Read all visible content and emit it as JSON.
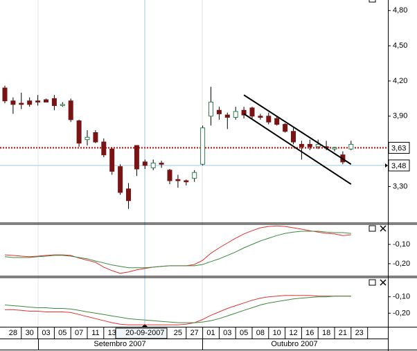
{
  "chart_data": [
    {
      "type": "candlestick",
      "categories": [
        null,
        "28",
        null,
        "30",
        null,
        "03",
        null,
        "05",
        null,
        "07",
        null,
        "11",
        null,
        "13",
        null,
        null,
        null,
        "20-09-2007",
        null,
        null,
        null,
        "25",
        null,
        "27",
        null,
        "01",
        null,
        "03",
        null,
        "05",
        null,
        "08",
        null,
        "10",
        null,
        "12",
        null,
        "16",
        null,
        "18",
        null,
        "21",
        null,
        "23"
      ],
      "months": [
        "Setembro 2007",
        "Outubro 2007"
      ],
      "open": [
        4.14,
        4.03,
        4.01,
        4.03,
        4.03,
        4.04,
        4.05,
        3.99,
        4.03,
        3.86,
        3.7,
        3.76,
        3.68,
        3.62,
        3.47,
        3.28,
        3.65,
        3.51,
        3.46,
        3.5,
        3.44,
        3.36,
        3.35,
        3.37,
        3.49,
        3.9,
        3.95,
        3.91,
        3.89,
        3.95,
        3.97,
        3.9,
        3.9,
        3.88,
        3.83,
        3.77,
        3.66,
        3.66,
        3.64,
        3.64,
        3.62,
        3.57,
        3.62,
        null
      ],
      "high": [
        4.16,
        4.06,
        4.1,
        4.06,
        4.08,
        4.05,
        4.08,
        4.02,
        4.05,
        3.87,
        3.78,
        3.78,
        3.71,
        3.63,
        3.49,
        3.33,
        3.65,
        3.53,
        3.53,
        3.52,
        3.45,
        3.4,
        3.36,
        3.44,
        3.82,
        4.15,
        3.98,
        3.93,
        3.98,
        3.98,
        3.98,
        3.92,
        3.93,
        3.9,
        3.84,
        3.8,
        3.69,
        3.7,
        3.7,
        3.69,
        3.64,
        3.6,
        3.69,
        null
      ],
      "low": [
        4.01,
        3.92,
        3.96,
        3.98,
        3.99,
        4.02,
        3.95,
        3.98,
        3.85,
        3.64,
        3.65,
        3.67,
        3.55,
        3.4,
        3.23,
        3.11,
        3.39,
        3.45,
        3.44,
        3.46,
        3.32,
        3.29,
        3.31,
        3.34,
        3.48,
        3.82,
        3.87,
        3.79,
        3.87,
        3.88,
        3.88,
        3.87,
        3.83,
        3.82,
        3.76,
        3.66,
        3.53,
        3.61,
        3.62,
        3.61,
        3.6,
        3.49,
        3.61,
        null
      ],
      "close": [
        4.03,
        4.0,
        4.0,
        4.0,
        4.02,
        4.02,
        3.99,
        4.0,
        3.87,
        3.67,
        3.72,
        3.68,
        3.57,
        3.43,
        3.25,
        3.18,
        3.45,
        3.48,
        3.5,
        3.49,
        3.35,
        3.35,
        3.34,
        3.42,
        3.8,
        4.02,
        3.92,
        3.89,
        3.94,
        3.91,
        3.9,
        3.89,
        3.85,
        3.83,
        3.77,
        3.68,
        3.64,
        3.64,
        3.66,
        3.63,
        3.63,
        3.51,
        3.66,
        null
      ],
      "up_color": "#2e7d4f",
      "down_color": "#7a1414",
      "ylim": [
        2.99,
        4.89
      ],
      "yticks": [
        {
          "value": 4.8,
          "label": "4,80"
        },
        {
          "value": 4.5,
          "label": "4,50"
        },
        {
          "value": 4.2,
          "label": "4,20"
        },
        {
          "value": 3.9,
          "label": "3,90"
        },
        {
          "value": 3.3,
          "label": "3,30"
        }
      ],
      "price_lines": [
        {
          "value": 3.63,
          "label": "3,63",
          "color": "#cc0000",
          "dotted": true
        },
        {
          "value": 3.48,
          "label": "3,48",
          "color": "#9cc9dc",
          "dotted": false
        }
      ],
      "trend_lines": [
        {
          "x": [
            29,
            42
          ],
          "y": [
            4.08,
            3.49
          ]
        },
        {
          "x": [
            29,
            42
          ],
          "y": [
            3.92,
            3.32
          ]
        }
      ]
    },
    {
      "type": "line",
      "ylim": [
        -0.265,
        0.004
      ],
      "yticks": [
        {
          "value": -0.1,
          "label": "-0,10"
        },
        {
          "value": -0.2,
          "label": "-0,20"
        }
      ],
      "series": [
        {
          "color": "#e83030",
          "values": [
            -0.154,
            -0.157,
            -0.161,
            -0.164,
            -0.161,
            -0.157,
            -0.154,
            -0.154,
            -0.157,
            -0.171,
            -0.182,
            -0.193,
            -0.218,
            -0.236,
            -0.25,
            -0.243,
            -0.232,
            -0.225,
            -0.218,
            -0.214,
            -0.211,
            -0.211,
            -0.211,
            -0.204,
            -0.182,
            -0.146,
            -0.118,
            -0.093,
            -0.068,
            -0.046,
            -0.029,
            -0.014,
            -0.007,
            -0.004,
            -0.007,
            -0.014,
            -0.021,
            -0.029,
            -0.036,
            -0.043,
            -0.046,
            -0.054,
            -0.05,
            null
          ]
        },
        {
          "color": "#3c8a3c",
          "values": [
            -0.164,
            -0.168,
            -0.168,
            -0.168,
            -0.164,
            -0.161,
            -0.157,
            -0.157,
            -0.161,
            -0.168,
            -0.175,
            -0.186,
            -0.196,
            -0.207,
            -0.214,
            -0.221,
            -0.221,
            -0.221,
            -0.218,
            -0.214,
            -0.211,
            -0.211,
            -0.211,
            -0.211,
            -0.204,
            -0.189,
            -0.175,
            -0.157,
            -0.139,
            -0.118,
            -0.1,
            -0.082,
            -0.068,
            -0.054,
            -0.043,
            -0.036,
            -0.032,
            -0.032,
            -0.032,
            -0.036,
            -0.039,
            -0.039,
            -0.043,
            null
          ]
        }
      ]
    },
    {
      "type": "line",
      "ylim": [
        -0.283,
        0.017
      ],
      "yticks": [
        {
          "value": -0.1,
          "label": "-0,10"
        },
        {
          "value": -0.2,
          "label": "-0,20"
        }
      ],
      "series": [
        {
          "color": "#e83030",
          "values": [
            -0.179,
            -0.179,
            -0.183,
            -0.188,
            -0.188,
            -0.192,
            -0.192,
            -0.192,
            -0.196,
            -0.208,
            -0.221,
            -0.233,
            -0.246,
            -0.258,
            -0.267,
            -0.271,
            -0.271,
            -0.271,
            -0.271,
            -0.271,
            -0.271,
            -0.271,
            -0.267,
            -0.258,
            -0.238,
            -0.213,
            -0.192,
            -0.171,
            -0.154,
            -0.138,
            -0.121,
            -0.108,
            -0.1,
            -0.096,
            -0.092,
            -0.092,
            -0.092,
            -0.092,
            -0.096,
            -0.096,
            -0.096,
            -0.096,
            -0.096,
            null
          ]
        },
        {
          "color": "#3c8a3c",
          "values": [
            -0.15,
            -0.154,
            -0.158,
            -0.163,
            -0.167,
            -0.167,
            -0.171,
            -0.171,
            -0.175,
            -0.183,
            -0.192,
            -0.2,
            -0.208,
            -0.217,
            -0.225,
            -0.233,
            -0.238,
            -0.242,
            -0.246,
            -0.25,
            -0.254,
            -0.258,
            -0.258,
            -0.258,
            -0.254,
            -0.246,
            -0.233,
            -0.217,
            -0.2,
            -0.183,
            -0.167,
            -0.15,
            -0.138,
            -0.129,
            -0.121,
            -0.113,
            -0.108,
            -0.104,
            -0.1,
            -0.1,
            -0.096,
            -0.096,
            -0.096,
            null
          ]
        }
      ]
    }
  ]
}
